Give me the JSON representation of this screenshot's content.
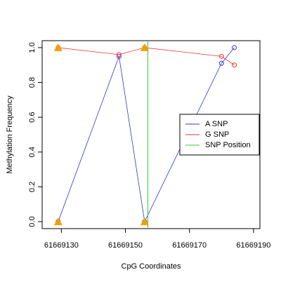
{
  "chart_data": {
    "type": "line",
    "x_label": "CpG Coordinates",
    "y_label": "Methylation Frequency",
    "xlim": [
      61669124,
      61669192
    ],
    "ylim": [
      -0.04,
      1.04
    ],
    "xticks": [
      61669130,
      61669150,
      61669170,
      61669190
    ],
    "yticks": [
      {
        "value": 0,
        "label": "0.0"
      },
      {
        "value": 0.2,
        "label": "0.2"
      },
      {
        "value": 0.4,
        "label": "0.4"
      },
      {
        "value": 0.6,
        "label": "0.6"
      },
      {
        "value": 0.8,
        "label": "0.8"
      },
      {
        "value": 1,
        "label": "1.0"
      }
    ],
    "x": [
      61669129,
      61669148,
      61669156,
      61669180,
      61669184
    ],
    "series": [
      {
        "name": "A SNP",
        "color": "#3333cc",
        "values": [
          0.0,
          0.95,
          0.0,
          0.91,
          1.0
        ]
      },
      {
        "name": "G SNP",
        "color": "#ee3333",
        "values": [
          1.0,
          0.96,
          1.0,
          0.95,
          0.9
        ]
      }
    ],
    "snp_position": {
      "name": "SNP Position",
      "color": "#33cc33",
      "x": 61669157
    },
    "snp_markers": {
      "color": "#f0a000",
      "x": [
        61669129,
        61669129,
        61669156,
        61669156
      ],
      "y": [
        0,
        1,
        0,
        1
      ]
    },
    "legend": "right"
  }
}
